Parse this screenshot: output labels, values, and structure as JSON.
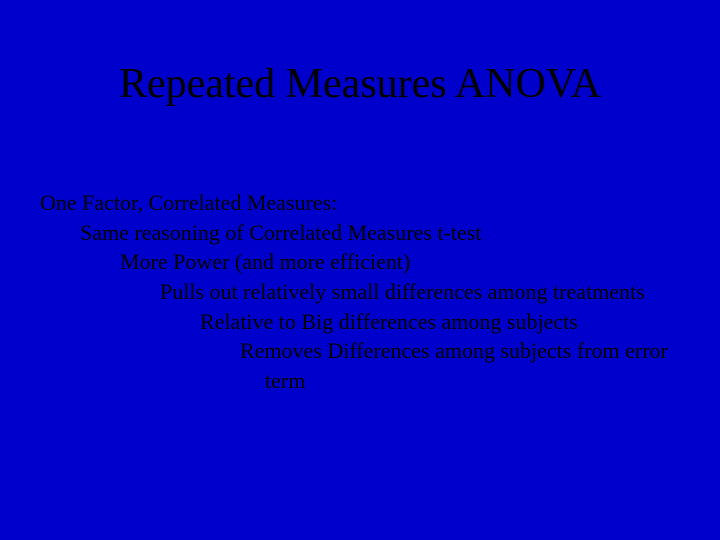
{
  "slide": {
    "background_color": "#0000cc",
    "text_color": "#000000",
    "font_family": "Times New Roman",
    "title": {
      "text": "Repeated Measures ANOVA",
      "fontsize": 42
    },
    "body": {
      "fontsize": 22,
      "lines": [
        {
          "indent": 0,
          "text": "One Factor, Correlated Measures:"
        },
        {
          "indent": 1,
          "text": "Same reasoning of Correlated Measures t-test"
        },
        {
          "indent": 2,
          "text": "More Power (and more efficient)"
        },
        {
          "indent": 3,
          "text": "Pulls out relatively small differences among treatments"
        },
        {
          "indent": 4,
          "text": "Relative to Big differences among subjects"
        },
        {
          "indent": 5,
          "text": "Removes Differences among subjects from error"
        },
        {
          "indent": 5,
          "text": "term",
          "continuation": true
        }
      ]
    }
  }
}
